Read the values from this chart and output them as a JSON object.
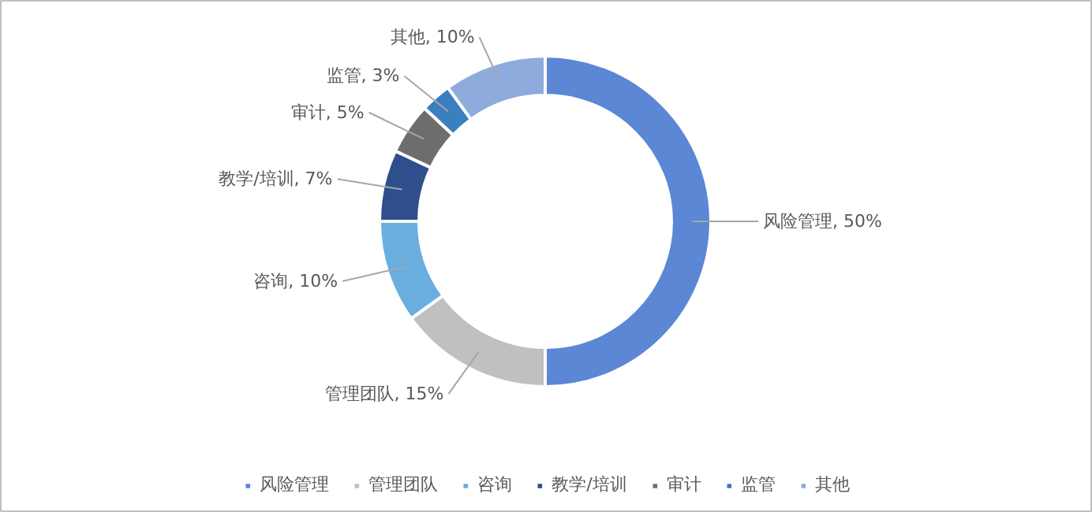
{
  "chart_data": {
    "type": "donut",
    "categories": [
      "风险管理",
      "管理团队",
      "咨询",
      "教学/培训",
      "审计",
      "监管",
      "其他"
    ],
    "values": [
      50,
      15,
      10,
      7,
      5,
      3,
      10
    ],
    "colors": [
      "#5b87d4",
      "#c0c0c0",
      "#6aaee0",
      "#2f4e8c",
      "#6d6d6d",
      "#3a7fc0",
      "#8faadc"
    ],
    "value_labels": [
      "风险管理, 50%",
      "管理团队, 15%",
      "咨询, 10%",
      "教学/培训, 7%",
      "审计, 5%",
      "监管, 3%",
      "其他, 10%"
    ],
    "legend": "bottom"
  }
}
